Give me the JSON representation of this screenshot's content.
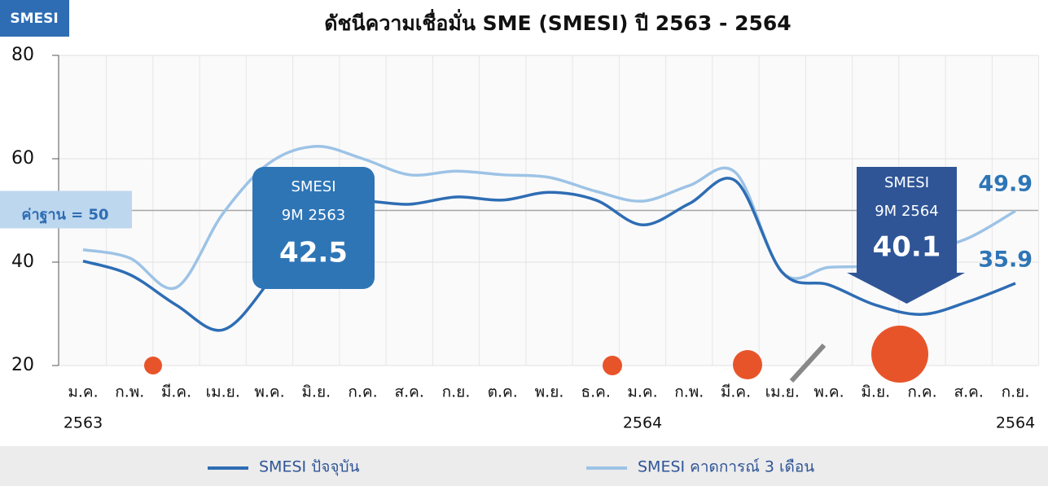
{
  "chart_data": {
    "type": "line",
    "badge": "SMESI",
    "title": "ดัชนีความเชื่อมั่น SME (SMESI) ปี 2563 - 2564",
    "categories": [
      "ม.ค.",
      "ก.พ.",
      "มี.ค.",
      "เม.ย.",
      "พ.ค.",
      "มิ.ย.",
      "ก.ค.",
      "ส.ค.",
      "ก.ย.",
      "ต.ค.",
      "พ.ย.",
      "ธ.ค.",
      "ม.ค.",
      "ก.พ.",
      "มี.ค.",
      "เม.ย.",
      "พ.ค.",
      "มิ.ย.",
      "ก.ค.",
      "ส.ค.",
      "ก.ย."
    ],
    "x_groups": [
      "2563",
      null,
      null,
      null,
      null,
      null,
      null,
      null,
      null,
      null,
      null,
      null,
      "2564",
      null,
      null,
      null,
      null,
      null,
      null,
      null,
      "2564"
    ],
    "series": [
      {
        "name": "SMESI ปัจจุบัน",
        "color": "#2e6db4",
        "values": [
          40.2,
          37.6,
          31.7,
          26.9,
          36.4,
          50,
          51.7,
          51.2,
          52.6,
          52,
          53.5,
          52,
          47.2,
          51.3,
          55.7,
          38,
          35.6,
          31.7,
          29.9,
          32.4,
          35.9
        ]
      },
      {
        "name": "SMESI คาดการณ์ 3 เดือน",
        "color": "#9dc3e6",
        "values": [
          42.4,
          40.8,
          35.1,
          49.4,
          59.2,
          62.4,
          60,
          56.9,
          57.6,
          56.9,
          56.4,
          53.7,
          51.8,
          54.8,
          57.3,
          38,
          39,
          39.4,
          41.9,
          44.7,
          49.9
        ]
      }
    ],
    "ylim": [
      20,
      80
    ],
    "yticks": [
      20,
      40,
      60,
      80
    ],
    "grid": true,
    "reference_line": {
      "value": 50,
      "label": "ค่าฐาน = 50"
    },
    "annotations": [
      {
        "title": "SMESI",
        "period": "9M 2563",
        "value": 42.5
      },
      {
        "title": "SMESI",
        "period": "9M 2564",
        "value": 40.1
      }
    ]
  }
}
